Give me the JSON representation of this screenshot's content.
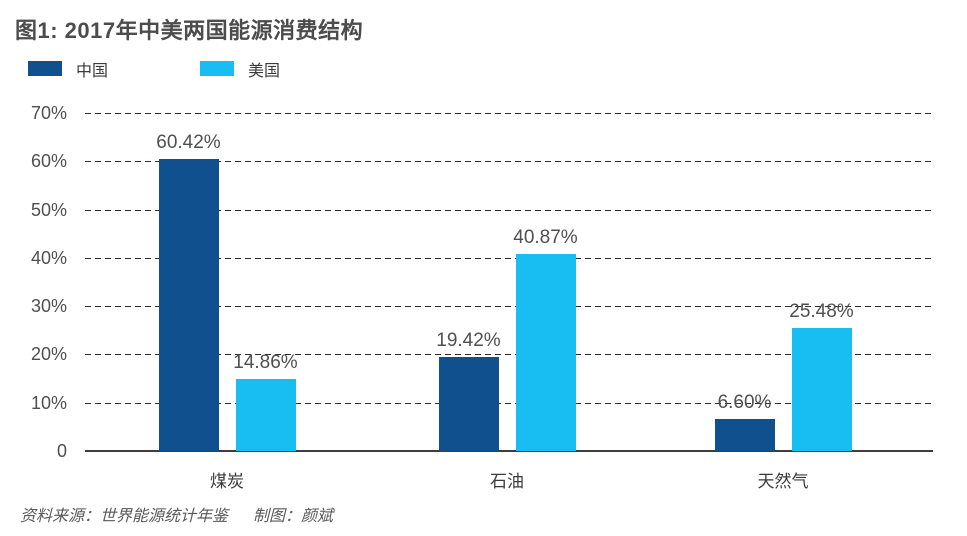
{
  "header": {
    "title": "图1: 2017年中美两国能源消费结构"
  },
  "legend": {
    "items": [
      {
        "key": "china",
        "label": "中国",
        "color": "#11508f"
      },
      {
        "key": "usa",
        "label": "美国",
        "color": "#18bef2"
      }
    ]
  },
  "chart_data": {
    "type": "bar",
    "title": "图1: 2017年中美两国能源消费结构",
    "categories": [
      "煤炭",
      "石油",
      "天然气"
    ],
    "category_keys": [
      "coal",
      "oil",
      "natural-gas"
    ],
    "series": [
      {
        "key": "china",
        "name": "中国",
        "color": "#11508f",
        "values": [
          60.42,
          19.42,
          6.6
        ],
        "labels": [
          "60.42%",
          "19.42%",
          "6.60%"
        ]
      },
      {
        "key": "usa",
        "name": "美国",
        "color": "#18bef2",
        "values": [
          14.86,
          40.87,
          25.48
        ],
        "labels": [
          "14.86%",
          "40.87%",
          "25.48%"
        ]
      }
    ],
    "ylim": [
      0,
      70
    ],
    "yticks": [
      {
        "value": 0,
        "label": "0"
      },
      {
        "value": 10,
        "label": "10%"
      },
      {
        "value": 20,
        "label": "20%"
      },
      {
        "value": 30,
        "label": "30%"
      },
      {
        "value": 40,
        "label": "40%"
      },
      {
        "value": 50,
        "label": "50%"
      },
      {
        "value": 60,
        "label": "60%"
      },
      {
        "value": 70,
        "label": "70%"
      }
    ],
    "grid": "horizontal-dashed",
    "legend_position": "top-left"
  },
  "footer": {
    "source": "资料来源：世界能源统计年鉴",
    "credit": "制图：颜斌"
  }
}
